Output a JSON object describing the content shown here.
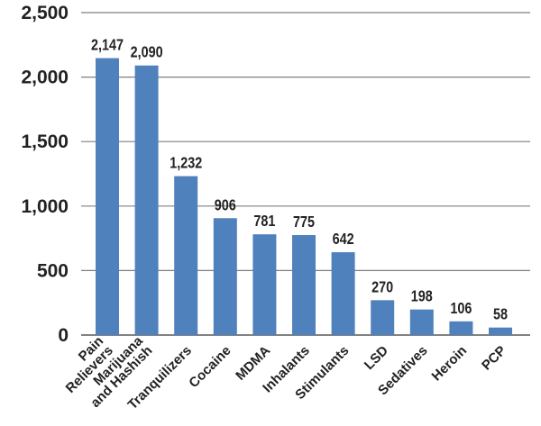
{
  "chart_data": {
    "type": "bar",
    "categories": [
      [
        "Pain",
        "Relievers"
      ],
      [
        "Marijuana",
        "and Hashish"
      ],
      [
        "Tranquilizers"
      ],
      [
        "Cocaine"
      ],
      [
        "MDMA"
      ],
      [
        "Inhalants"
      ],
      [
        "Stimulants"
      ],
      [
        "LSD"
      ],
      [
        "Sedatives"
      ],
      [
        "Heroin"
      ],
      [
        "PCP"
      ]
    ],
    "values": [
      2147,
      2090,
      1232,
      906,
      781,
      775,
      642,
      270,
      198,
      106,
      58
    ],
    "value_labels": [
      "2,147",
      "2,090",
      "1,232",
      "906",
      "781",
      "775",
      "642",
      "270",
      "198",
      "106",
      "58"
    ],
    "ylim": [
      0,
      2500
    ],
    "yticks": [
      0,
      500,
      1000,
      1500,
      2000,
      2500
    ],
    "ytick_labels": [
      "0",
      "500",
      "1,000",
      "1,500",
      "2,000",
      "2,500"
    ],
    "title": "",
    "xlabel": "",
    "ylabel": "",
    "grid": true,
    "bar_color": "#4F81BD",
    "grid_color": "#7F7F7F"
  }
}
